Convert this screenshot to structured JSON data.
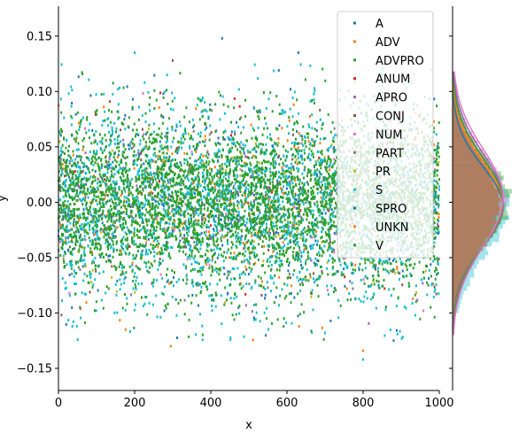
{
  "chart_data": {
    "type": "scatter",
    "title": "",
    "xlabel": "x",
    "ylabel": "y",
    "xlim": [
      0,
      1000
    ],
    "ylim": [
      -0.17,
      0.177
    ],
    "x_ticks": [
      0,
      200,
      400,
      600,
      800,
      1000
    ],
    "x_tick_labels": [
      "0",
      "200",
      "400",
      "600",
      "800",
      "1000"
    ],
    "y_ticks": [
      -0.15,
      -0.1,
      -0.05,
      0.0,
      0.05,
      0.1,
      0.15
    ],
    "y_tick_labels": [
      "−0.15",
      "−0.10",
      "−0.05",
      "0.00",
      "0.05",
      "0.10",
      "0.15"
    ],
    "grid": false,
    "legend_position": "top-right",
    "marginal": "right histogram with density curves",
    "series": [
      {
        "name": "A",
        "color": "#1f77b4",
        "n_points": 450,
        "mean": 0.0,
        "std": 0.04
      },
      {
        "name": "ADV",
        "color": "#ff7f0e",
        "n_points": 220,
        "mean": 0.0,
        "std": 0.04
      },
      {
        "name": "ADVPRO",
        "color": "#2ca02c",
        "n_points": 200,
        "mean": 0.0,
        "std": 0.04
      },
      {
        "name": "ANUM",
        "color": "#d62728",
        "n_points": 60,
        "mean": 0.0,
        "std": 0.04
      },
      {
        "name": "APRO",
        "color": "#9467bd",
        "n_points": 100,
        "mean": 0.0,
        "std": 0.04
      },
      {
        "name": "CONJ",
        "color": "#8c564b",
        "n_points": 160,
        "mean": 0.0,
        "std": 0.04
      },
      {
        "name": "NUM",
        "color": "#e377c2",
        "n_points": 100,
        "mean": 0.0,
        "std": 0.04
      },
      {
        "name": "PART",
        "color": "#7f7f7f",
        "n_points": 120,
        "mean": 0.0,
        "std": 0.04
      },
      {
        "name": "PR",
        "color": "#bcbd22",
        "n_points": 160,
        "mean": 0.0,
        "std": 0.04
      },
      {
        "name": "S",
        "color": "#17becf",
        "n_points": 2200,
        "mean": -0.005,
        "std": 0.045
      },
      {
        "name": "SPRO",
        "color": "#1f77b4",
        "n_points": 160,
        "mean": 0.0,
        "std": 0.04
      },
      {
        "name": "UNKN",
        "color": "#ff7f0e",
        "n_points": 60,
        "mean": 0.0,
        "std": 0.04
      },
      {
        "name": "V",
        "color": "#2ca02c",
        "n_points": 3500,
        "mean": 0.0,
        "std": 0.038
      }
    ],
    "highlight_points": [
      {
        "x": 430,
        "y": 0.148,
        "series": "A"
      },
      {
        "x": 200,
        "y": 0.135,
        "series": "S"
      },
      {
        "x": 630,
        "y": 0.135,
        "series": "A"
      },
      {
        "x": 300,
        "y": 0.128,
        "series": "CONJ"
      },
      {
        "x": 800,
        "y": -0.142,
        "series": "S"
      },
      {
        "x": 800,
        "y": -0.134,
        "series": "ADV"
      },
      {
        "x": 295,
        "y": -0.13,
        "series": "ADV"
      },
      {
        "x": 880,
        "y": -0.125,
        "series": "A"
      },
      {
        "x": 700,
        "y": -0.118,
        "series": "S"
      }
    ]
  }
}
